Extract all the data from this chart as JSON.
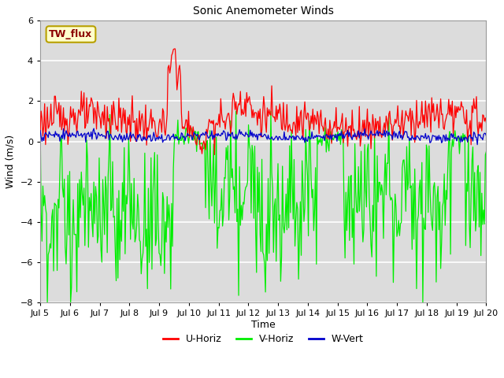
{
  "title": "Sonic Anemometer Winds",
  "xlabel": "Time",
  "ylabel": "Wind (m/s)",
  "ylim": [
    -8,
    6
  ],
  "yticks": [
    -8,
    -6,
    -4,
    -2,
    0,
    2,
    4,
    6
  ],
  "n_days": 15,
  "n_points": 500,
  "start_day": 5,
  "end_day": 20,
  "month": "Jul",
  "u_color": "#ff0000",
  "v_color": "#00ee00",
  "w_color": "#0000cc",
  "u_label": "U-Horiz",
  "v_label": "V-Horiz",
  "w_label": "W-Vert",
  "annotation_text": "TW_flux",
  "bg_color": "#dcdcdc",
  "grid_color": "#ffffff",
  "line_width": 0.9,
  "seed": 123
}
